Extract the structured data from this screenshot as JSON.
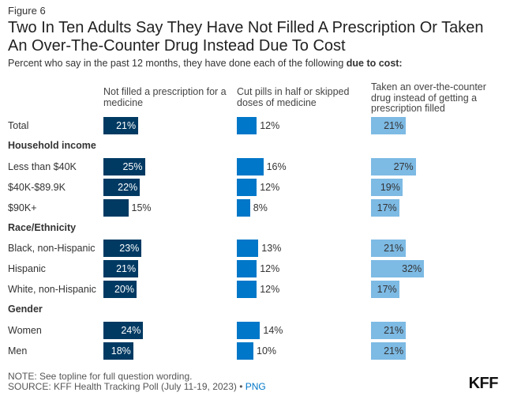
{
  "figure_label": "Figure 6",
  "chart_data": {
    "type": "bar",
    "title": "Two In Ten Adults Say They Have Not Filled A Prescription Or Taken An Over-The-Counter Drug Instead Due To Cost",
    "subtitle_prefix": "Percent who say in the past 12 months, they have done each of the following",
    "subtitle_bold": "due to cost:",
    "unit": "%",
    "series": [
      {
        "name": "Not filled a prescription for a medicine",
        "color": "#003a63",
        "label_color_inside": "#ffffff"
      },
      {
        "name": "Cut pills in half or skipped doses of medicine",
        "color": "#0077c8",
        "label_color_inside": "#ffffff"
      },
      {
        "name": "Taken an over-the-counter drug instead of getting a prescription filled",
        "color": "#7dbae4",
        "label_color_inside": "#333333"
      }
    ],
    "rows": [
      {
        "type": "row",
        "label": "Total",
        "values": [
          21,
          12,
          21
        ]
      },
      {
        "type": "group",
        "label": "Household income"
      },
      {
        "type": "row",
        "label": "Less than $40K",
        "values": [
          25,
          16,
          27
        ]
      },
      {
        "type": "row",
        "label": "$40K-$89.9K",
        "values": [
          22,
          12,
          19
        ]
      },
      {
        "type": "row",
        "label": "$90K+",
        "values": [
          15,
          8,
          17
        ]
      },
      {
        "type": "group",
        "label": "Race/Ethnicity"
      },
      {
        "type": "row",
        "label": "Black, non-Hispanic",
        "values": [
          23,
          13,
          21
        ]
      },
      {
        "type": "row",
        "label": "Hispanic",
        "values": [
          21,
          12,
          32
        ]
      },
      {
        "type": "row",
        "label": "White, non-Hispanic",
        "values": [
          20,
          12,
          17
        ]
      },
      {
        "type": "group",
        "label": "Gender"
      },
      {
        "type": "row",
        "label": "Women",
        "values": [
          24,
          14,
          21
        ]
      },
      {
        "type": "row",
        "label": "Men",
        "values": [
          18,
          10,
          21
        ]
      }
    ]
  },
  "footer": {
    "note": "NOTE: See topline for full question wording.",
    "source": "SOURCE: KFF Health Tracking Poll (July 11-19, 2023) •",
    "png_link": "PNG",
    "logo": "KFF"
  }
}
